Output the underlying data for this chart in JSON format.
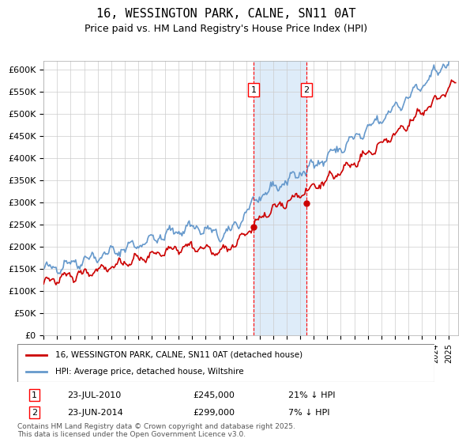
{
  "title": "16, WESSINGTON PARK, CALNE, SN11 0AT",
  "subtitle": "Price paid vs. HM Land Registry's House Price Index (HPI)",
  "ylabel_ticks": [
    "£0",
    "£50K",
    "£100K",
    "£150K",
    "£200K",
    "£250K",
    "£300K",
    "£350K",
    "£400K",
    "£450K",
    "£500K",
    "£550K",
    "£600K"
  ],
  "ylim": [
    0,
    620000
  ],
  "ytick_vals": [
    0,
    50000,
    100000,
    150000,
    200000,
    250000,
    300000,
    350000,
    400000,
    450000,
    500000,
    550000,
    600000
  ],
  "xlim_start": 1995.0,
  "xlim_end": 2025.7,
  "sale1_x": 2010.55,
  "sale1_y": 245000,
  "sale2_x": 2014.47,
  "sale2_y": 299000,
  "sale1_label": "23-JUL-2010",
  "sale1_price": "£245,000",
  "sale1_hpi": "21% ↓ HPI",
  "sale2_label": "23-JUN-2014",
  "sale2_price": "£299,000",
  "sale2_hpi": "7% ↓ HPI",
  "legend_line1": "16, WESSINGTON PARK, CALNE, SN11 0AT (detached house)",
  "legend_line2": "HPI: Average price, detached house, Wiltshire",
  "footer": "Contains HM Land Registry data © Crown copyright and database right 2025.\nThis data is licensed under the Open Government Licence v3.0.",
  "line_red": "#cc0000",
  "line_blue": "#6699cc",
  "shade_color": "#d0e4f7",
  "background_color": "#ffffff",
  "grid_color": "#cccccc"
}
